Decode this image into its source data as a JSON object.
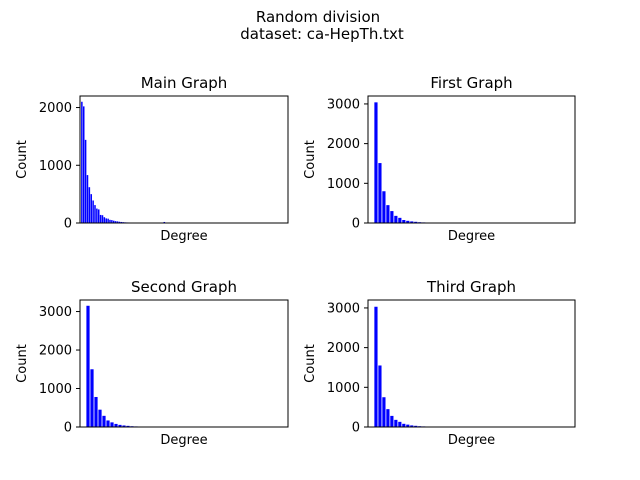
{
  "figure": {
    "title": "Random division",
    "subtitle": "dataset: ca-HepTh.txt"
  },
  "chart_data": [
    {
      "type": "bar",
      "title": "Main Graph",
      "xlabel": "Degree",
      "ylabel": "Count",
      "ylim": [
        0,
        2200
      ],
      "yticks": [
        0,
        1000,
        2000
      ],
      "x": [
        1,
        2,
        3,
        4,
        5,
        6,
        7,
        8,
        9,
        10,
        11,
        12,
        13,
        14,
        15,
        16,
        17,
        18,
        19,
        20,
        21,
        22,
        23,
        24,
        25,
        26,
        27,
        28,
        29,
        30,
        31,
        32,
        33,
        34,
        36,
        38,
        40,
        45,
        50
      ],
      "values": [
        2100,
        2020,
        1440,
        830,
        620,
        500,
        390,
        310,
        250,
        235,
        140,
        135,
        100,
        80,
        75,
        55,
        50,
        40,
        32,
        28,
        22,
        18,
        15,
        12,
        10,
        9,
        8,
        7,
        6,
        5,
        4,
        4,
        3,
        3,
        3,
        2,
        2,
        18,
        2
      ],
      "xlim": [
        0,
        111
      ],
      "color": "#0000ff",
      "grid": false
    },
    {
      "type": "bar",
      "title": "First Graph",
      "xlabel": "Degree",
      "ylabel": "Count",
      "ylim": [
        0,
        3200
      ],
      "yticks": [
        0,
        1000,
        2000,
        3000
      ],
      "x": [
        1,
        2,
        3,
        4,
        5,
        6,
        7,
        8,
        9,
        10,
        11,
        12,
        13,
        14,
        15,
        16,
        17,
        18,
        19,
        20,
        21,
        22
      ],
      "values": [
        3040,
        1510,
        800,
        450,
        300,
        180,
        130,
        75,
        55,
        40,
        30,
        20,
        15,
        12,
        10,
        8,
        6,
        5,
        4,
        3,
        2,
        2
      ],
      "xlim": [
        -1,
        51
      ],
      "color": "#0000ff",
      "grid": false
    },
    {
      "type": "bar",
      "title": "Second Graph",
      "xlabel": "Degree",
      "ylabel": "Count",
      "ylim": [
        0,
        3300
      ],
      "yticks": [
        0,
        1000,
        2000,
        3000
      ],
      "x": [
        1,
        2,
        3,
        4,
        5,
        6,
        7,
        8,
        9,
        10,
        11,
        12,
        13,
        14,
        15,
        16,
        17,
        18,
        19,
        20,
        21,
        22
      ],
      "values": [
        3150,
        1500,
        780,
        450,
        290,
        170,
        120,
        80,
        55,
        40,
        30,
        20,
        15,
        12,
        10,
        8,
        6,
        5,
        4,
        3,
        2,
        2
      ],
      "xlim": [
        -1,
        51
      ],
      "color": "#0000ff",
      "grid": false
    },
    {
      "type": "bar",
      "title": "Third Graph",
      "xlabel": "Degree",
      "ylabel": "Count",
      "ylim": [
        0,
        3200
      ],
      "yticks": [
        0,
        1000,
        2000,
        3000
      ],
      "x": [
        1,
        2,
        3,
        4,
        5,
        6,
        7,
        8,
        9,
        10,
        11,
        12,
        13,
        14,
        15,
        16,
        17,
        18,
        19,
        20,
        21,
        22
      ],
      "values": [
        3030,
        1550,
        750,
        450,
        280,
        180,
        130,
        80,
        60,
        40,
        30,
        20,
        15,
        12,
        10,
        8,
        6,
        5,
        4,
        3,
        2,
        2
      ],
      "xlim": [
        -1,
        51
      ],
      "color": "#0000ff",
      "grid": false
    }
  ]
}
